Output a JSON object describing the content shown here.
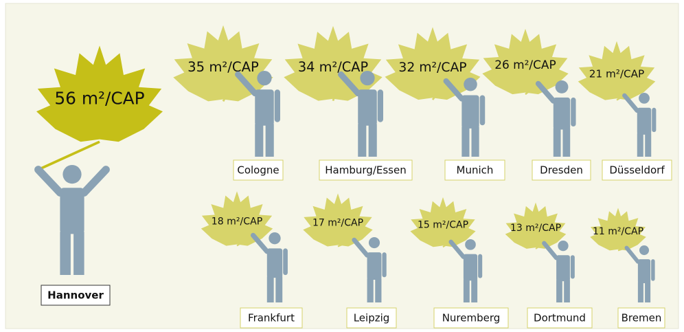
{
  "chart_data": {
    "type": "pictogram",
    "categories": [
      "Hannover",
      "Cologne",
      "Hamburg/Essen",
      "Munich",
      "Dresden",
      "Düsseldorf",
      "Frankfurt",
      "Leipzig",
      "Nuremberg",
      "Dortmund",
      "Bremen"
    ],
    "values": [
      56,
      35,
      34,
      32,
      26,
      21,
      18,
      17,
      15,
      13,
      11
    ],
    "value_labels": [
      "56 m²/CAP",
      "35 m²/CAP",
      "34 m²/CAP",
      "32 m²/CAP",
      "26 m²/CAP",
      "21 m²/CAP",
      "18 m²/CAP",
      "17 m²/CAP",
      "15 m²/CAP",
      "13 m²/CAP",
      "11 m²/CAP"
    ],
    "colors": [
      "#c5bf18",
      "#d7d46a",
      "#d7d46a",
      "#d7d46a",
      "#d7d46a",
      "#d7d46a",
      "#d7d46a",
      "#d7d46a",
      "#d7d46a",
      "#d7d46a",
      "#d7d46a"
    ],
    "figure_color": "#8aa2b4"
  }
}
